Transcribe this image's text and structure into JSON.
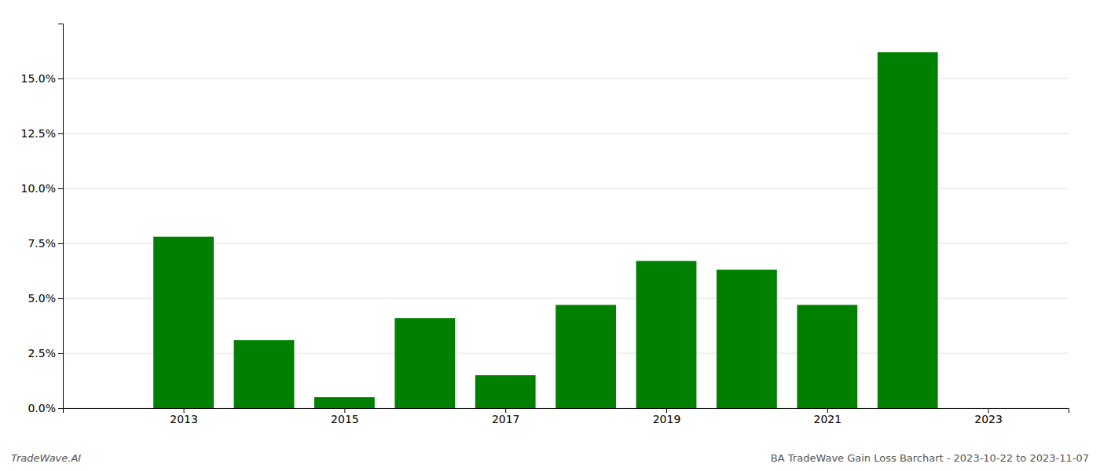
{
  "chart_data": {
    "type": "bar",
    "x": [
      2013,
      2014,
      2015,
      2016,
      2017,
      2018,
      2019,
      2020,
      2021,
      2022
    ],
    "values": [
      0.078,
      0.031,
      0.005,
      0.041,
      0.015,
      0.047,
      0.067,
      0.063,
      0.047,
      0.162
    ],
    "color": "#008000",
    "xlim": [
      2011.5,
      2024.0
    ],
    "xticks": [
      2013,
      2015,
      2017,
      2019,
      2021,
      2023
    ],
    "ylim": [
      0,
      0.175
    ],
    "yticks": [
      {
        "value": 0.0,
        "label": "0.0%"
      },
      {
        "value": 0.025,
        "label": "2.5%"
      },
      {
        "value": 0.05,
        "label": "5.0%"
      },
      {
        "value": 0.075,
        "label": "7.5%"
      },
      {
        "value": 0.1,
        "label": "10.0%"
      },
      {
        "value": 0.125,
        "label": "12.5%"
      },
      {
        "value": 0.15,
        "label": "15.0%"
      }
    ],
    "grid": true,
    "annotations": [
      "TradeWave.AI",
      "BA TradeWave Gain Loss Barchart - 2023-10-22 to 2023-11-07"
    ]
  }
}
